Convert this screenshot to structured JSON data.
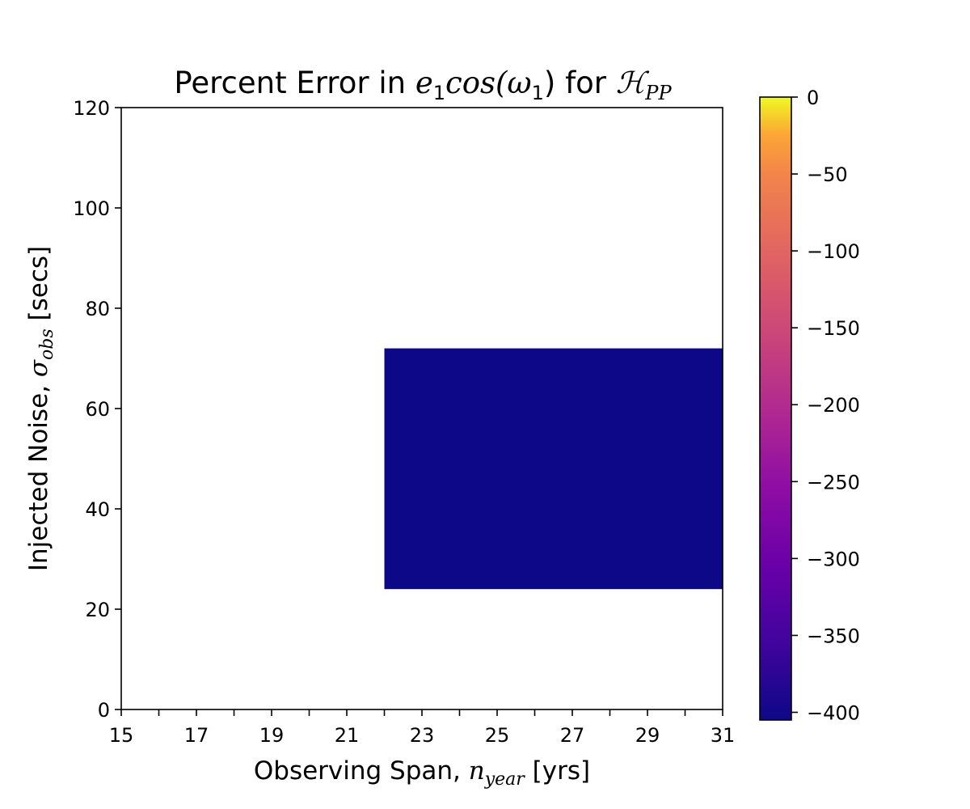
{
  "chart_data": {
    "type": "heatmap",
    "title": {
      "prefix": "Percent Error in ",
      "math_e": "e",
      "math_e_sub": "1",
      "math_cos": "cos(",
      "math_omega": "ω",
      "math_omega_sub": "1",
      "math_close": ")",
      "middle": " for ",
      "math_H": "ℋ",
      "math_H_sub": "PP"
    },
    "xlabel": {
      "prefix": "Observing Span, ",
      "math_n": "n",
      "math_sub": "year",
      "suffix": " [yrs]"
    },
    "ylabel": {
      "prefix": "Injected Noise, ",
      "math_sigma": "σ",
      "math_sub": "obs",
      "suffix": " [secs]"
    },
    "xlim": [
      15,
      31
    ],
    "ylim": [
      0,
      120
    ],
    "x_ticks": [
      15,
      16,
      17,
      18,
      19,
      20,
      21,
      22,
      23,
      24,
      25,
      26,
      27,
      28,
      29,
      30,
      31
    ],
    "x_tick_labels": [
      "15",
      "17",
      "19",
      "21",
      "23",
      "25",
      "27",
      "29",
      "31"
    ],
    "y_ticks": [
      0,
      20,
      40,
      60,
      80,
      100,
      120
    ],
    "y_tick_labels": [
      "0",
      "20",
      "40",
      "60",
      "80",
      "100",
      "120"
    ],
    "cells": [
      {
        "x0": 22,
        "x1": 31,
        "y0": 24,
        "y1": 72,
        "value": -405
      }
    ],
    "colormap": "plasma",
    "colorbar": {
      "vmin": -405,
      "vmax": 0,
      "ticks": [
        0,
        -50,
        -100,
        -150,
        -200,
        -250,
        -300,
        -350,
        -400
      ],
      "tick_labels": [
        "0",
        "−50",
        "−100",
        "−150",
        "−200",
        "−250",
        "−300",
        "−350",
        "−400"
      ]
    },
    "grid": false
  }
}
